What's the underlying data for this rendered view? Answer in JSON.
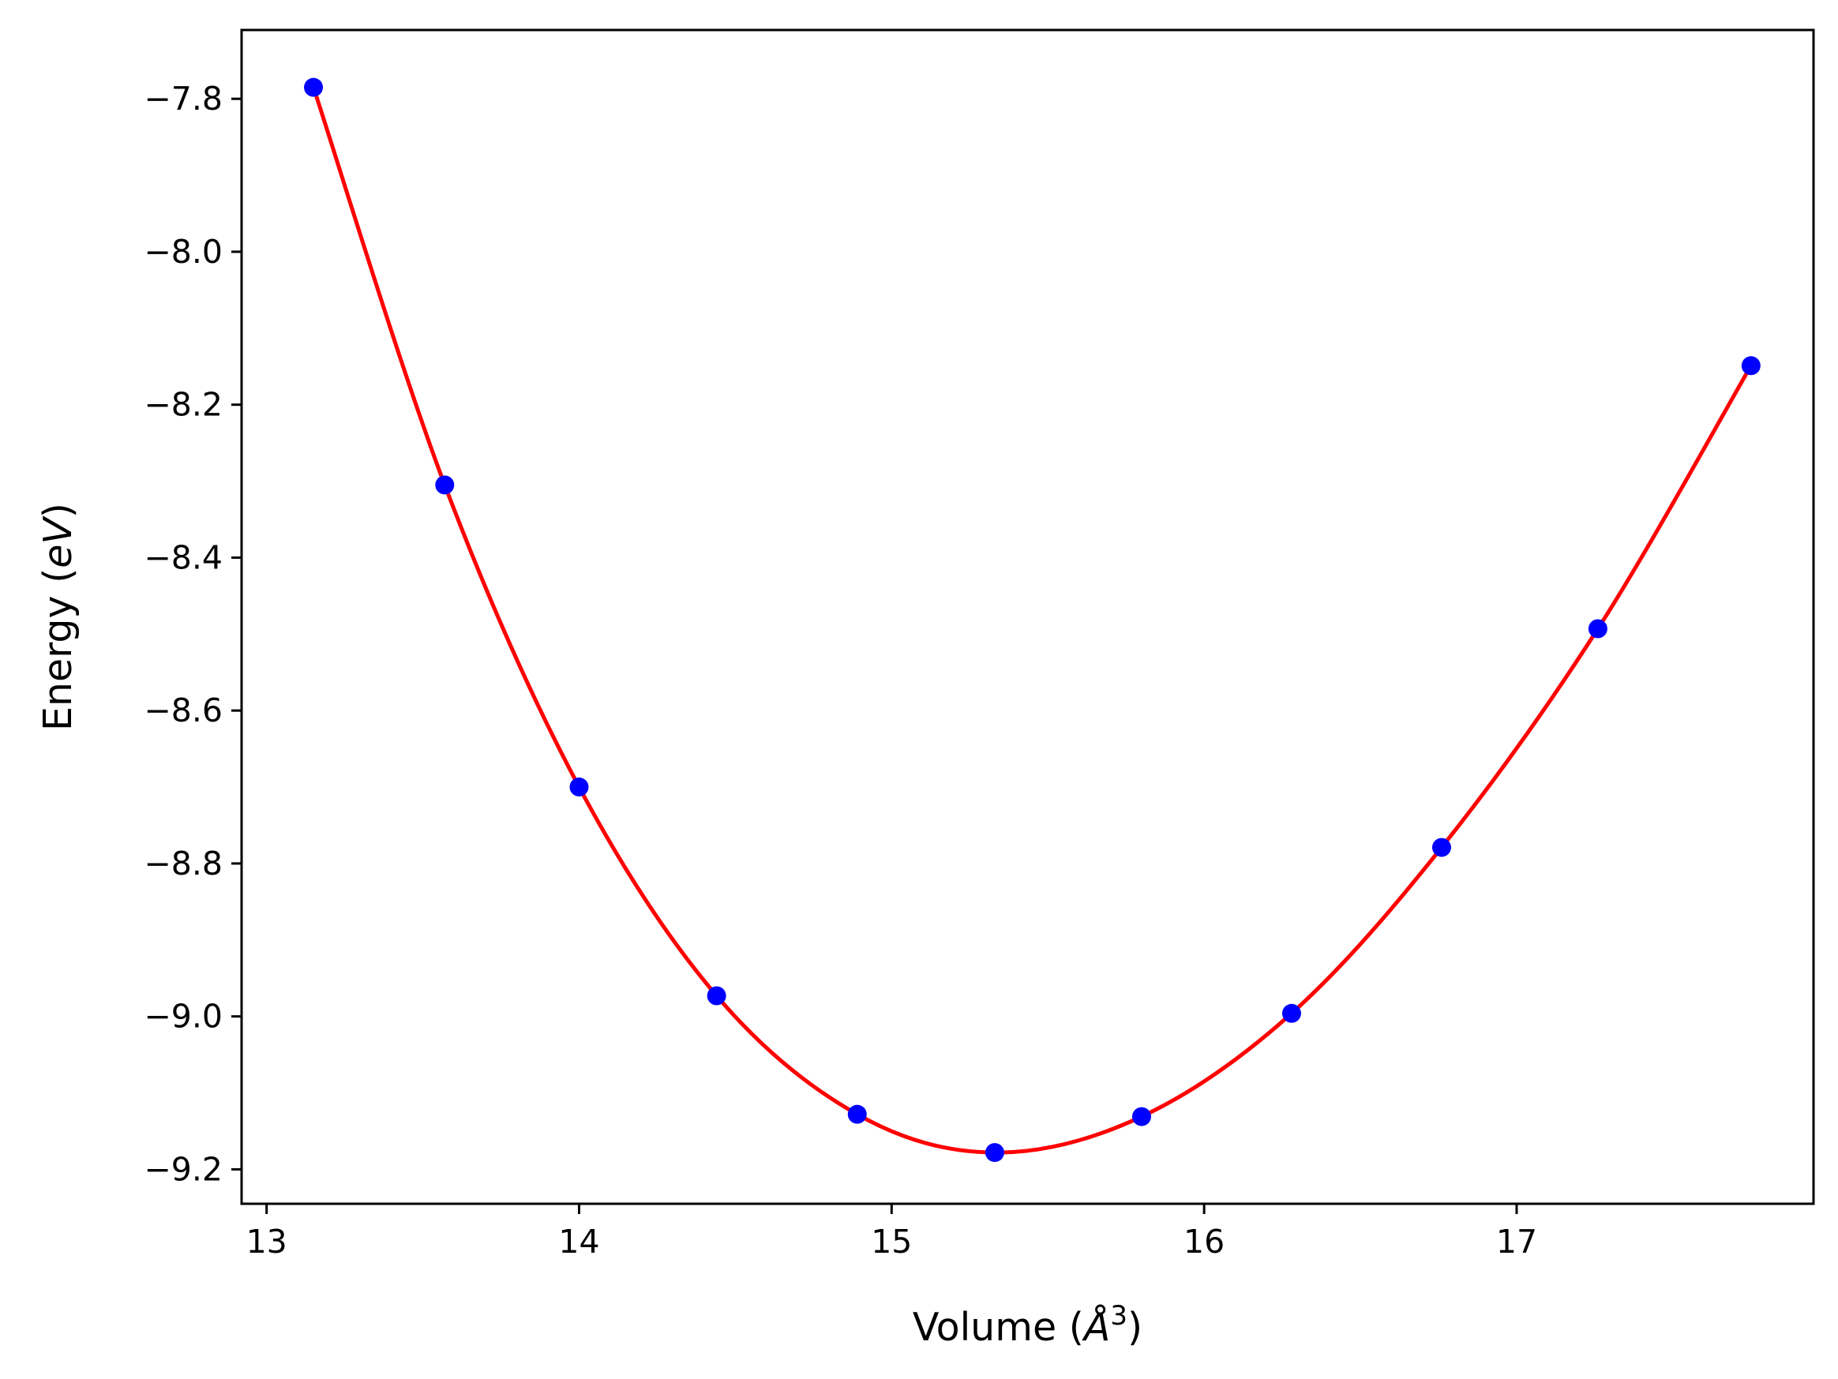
{
  "chart_data": {
    "type": "scatter",
    "title": "",
    "xlabel": "Volume",
    "xlabel_unit": "Å",
    "xlabel_unit_sup": "3",
    "ylabel": "Energy",
    "ylabel_unit": "eV",
    "xlim": [
      12.92,
      17.95
    ],
    "ylim": [
      -9.245,
      -7.71
    ],
    "xticks": [
      13,
      14,
      15,
      16,
      17
    ],
    "xtick_labels": [
      "13",
      "14",
      "15",
      "16",
      "17"
    ],
    "yticks": [
      -7.8,
      -8.0,
      -8.2,
      -8.4,
      -8.6,
      -8.8,
      -9.0,
      -9.2
    ],
    "ytick_labels": [
      "−7.8",
      "−8.0",
      "−8.2",
      "−8.4",
      "−8.6",
      "−8.8",
      "−9.0",
      "−9.2"
    ],
    "grid": false,
    "series": [
      {
        "kind": "scatter",
        "color": "#0000ff",
        "x": [
          13.15,
          13.57,
          14.0,
          14.44,
          14.89,
          15.33,
          15.8,
          16.28,
          16.76,
          17.26,
          17.75
        ],
        "y": [
          -7.785,
          -8.305,
          -8.7,
          -8.973,
          -9.128,
          -9.178,
          -9.131,
          -8.996,
          -8.779,
          -8.493,
          -8.149
        ]
      },
      {
        "kind": "fit-line",
        "color": "#ff0000",
        "x": [
          13.15,
          13.57,
          14.0,
          14.44,
          14.89,
          15.33,
          15.8,
          16.28,
          16.76,
          17.26,
          17.75
        ],
        "y": [
          -7.785,
          -8.305,
          -8.7,
          -8.973,
          -9.128,
          -9.178,
          -9.131,
          -8.996,
          -8.779,
          -8.493,
          -8.149
        ]
      }
    ]
  }
}
